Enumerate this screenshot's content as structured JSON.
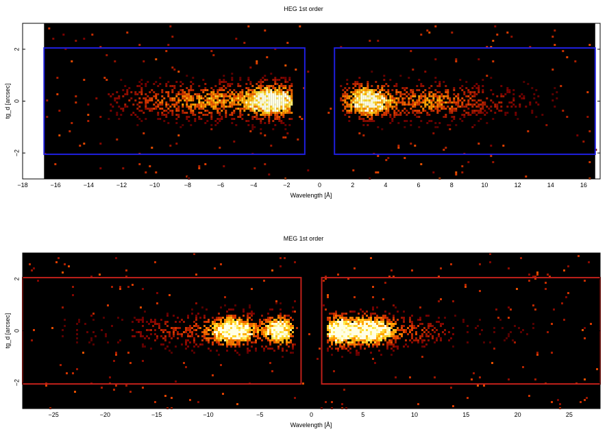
{
  "chart_data": [
    {
      "type": "heatmap",
      "title": "HEG 1st order",
      "xlabel": "Wavelength [Å]",
      "ylabel": "tg_d [arcsec]",
      "xlim": [
        -18,
        17
      ],
      "ylim": [
        -3.0,
        3.0
      ],
      "data_extent_x": [
        -16.7,
        16.7
      ],
      "xticks": [
        -18,
        -16,
        -14,
        -12,
        -10,
        -8,
        -6,
        -4,
        -2,
        0,
        2,
        4,
        6,
        8,
        10,
        12,
        14,
        16
      ],
      "xticklabels": [
        "−18",
        "−16",
        "−14",
        "−12",
        "−10",
        "−8",
        "−6",
        "−4",
        "−2",
        "0",
        "2",
        "4",
        "6",
        "8",
        "10",
        "12",
        "14",
        "16"
      ],
      "yticks": [
        -2,
        0,
        2
      ],
      "yticklabels": [
        "−2",
        "0",
        "2"
      ],
      "region_color": "#1f1fe0",
      "regions": [
        {
          "x": [
            -16.7,
            -0.9
          ],
          "y": [
            -2.05,
            2.05
          ]
        },
        {
          "x": [
            0.9,
            16.7
          ],
          "y": [
            -2.05,
            2.05
          ]
        }
      ],
      "intensity_peaks": [
        {
          "x": -2.8,
          "y": 0.0,
          "peak": 1.0
        },
        {
          "x": 2.9,
          "y": 0.0,
          "peak": 1.0
        },
        {
          "x": -6.0,
          "y": 0.0,
          "peak": 0.55
        },
        {
          "x": 6.5,
          "y": 0.0,
          "peak": 0.55
        }
      ],
      "grid": false,
      "colormap": "black-red-yellow-white"
    },
    {
      "type": "heatmap",
      "title": "MEG 1st order",
      "xlabel": "Wavelength [Å]",
      "ylabel": "tg_d [arcsec]",
      "xlim": [
        -28,
        28
      ],
      "ylim": [
        -3.0,
        3.0
      ],
      "data_extent_x": [
        -28,
        28
      ],
      "xticks": [
        -25,
        -20,
        -15,
        -10,
        -5,
        0,
        5,
        10,
        15,
        20,
        25
      ],
      "xticklabels": [
        "−25",
        "−20",
        "−15",
        "−10",
        "−5",
        "0",
        "5",
        "10",
        "15",
        "20",
        "25"
      ],
      "yticks": [
        -2,
        0,
        2
      ],
      "yticklabels": [
        "−2",
        "0",
        "2"
      ],
      "region_color": "#c0201a",
      "regions": [
        {
          "x": [
            -28,
            -1.0
          ],
          "y": [
            -2.05,
            2.05
          ]
        },
        {
          "x": [
            1.0,
            28
          ],
          "y": [
            -2.05,
            2.05
          ]
        }
      ],
      "intensity_peaks": [
        {
          "x": -7.5,
          "y": 0.0,
          "peak": 1.0
        },
        {
          "x": -3.0,
          "y": 0.0,
          "peak": 1.0
        },
        {
          "x": 2.5,
          "y": 0.0,
          "peak": 1.0
        },
        {
          "x": 5.5,
          "y": 0.0,
          "peak": 1.0
        }
      ],
      "grid": false,
      "colormap": "black-red-yellow-white"
    }
  ]
}
